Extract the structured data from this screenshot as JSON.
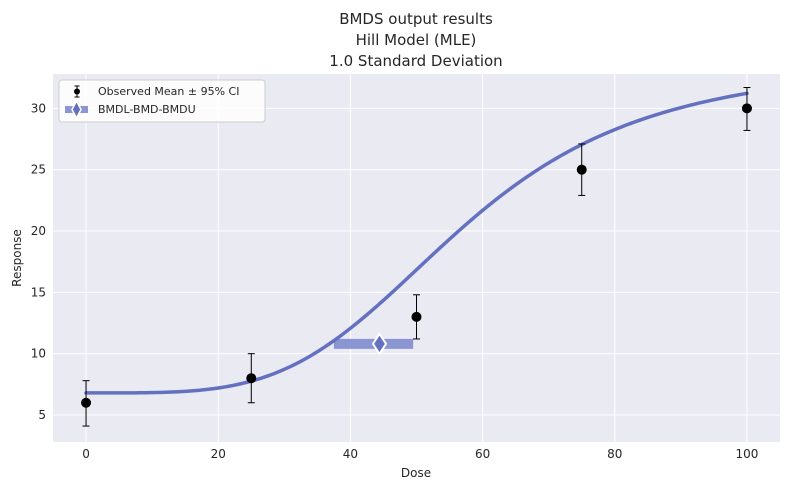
{
  "chart_data": {
    "type": "scatter",
    "title": [
      "BMDS output results",
      "Hill Model (MLE)",
      "1.0 Standard Deviation"
    ],
    "xlabel": "Dose",
    "ylabel": "Response",
    "xlim": [
      -5,
      105
    ],
    "ylim": [
      2.8,
      32.8
    ],
    "xticks": [
      0,
      20,
      40,
      60,
      80,
      100
    ],
    "yticks": [
      5,
      10,
      15,
      20,
      25,
      30
    ],
    "grid": true,
    "legend_position": "top-left",
    "series": [
      {
        "name": "Observed Mean ± 95% CI",
        "kind": "errorbar",
        "x": [
          0,
          25,
          50,
          75,
          100
        ],
        "y": [
          6.0,
          8.0,
          13.0,
          25.0,
          30.0
        ],
        "ci_lower": [
          4.1,
          6.0,
          11.2,
          22.9,
          28.2
        ],
        "ci_upper": [
          7.8,
          10.0,
          14.8,
          27.1,
          31.7
        ],
        "color": "#000000"
      },
      {
        "kind": "model-curve",
        "model": "hill",
        "params": {
          "g": 6.8,
          "v": 27.0,
          "k": 57.0,
          "n": 4.0
        },
        "x_range": [
          0,
          100
        ],
        "color": "#6470c0"
      },
      {
        "name": "BMDL-BMD-BMDU",
        "kind": "bmd-interval",
        "bmdl": 37.5,
        "bmd": 44.4,
        "bmdu": 49.5,
        "y": 10.8,
        "color": "#6470c0",
        "bar_color": "#8b95d1"
      }
    ],
    "colors": {
      "plot_background": "#eaeaf2",
      "grid": "#ffffff",
      "text": "#262626"
    }
  }
}
